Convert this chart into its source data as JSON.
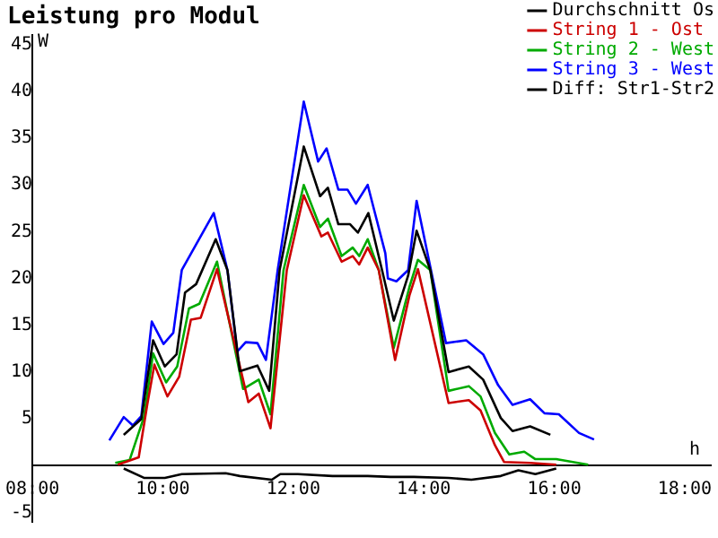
{
  "chart_data": {
    "type": "line",
    "title": "Leistung pro Modul",
    "xlabel": "h",
    "ylabel": "W",
    "xlim": [
      8,
      18.4
    ],
    "ylim": [
      -6,
      46
    ],
    "xticks": [
      {
        "value": 8,
        "label": "08:00"
      },
      {
        "value": 10,
        "label": "10:00"
      },
      {
        "value": 12,
        "label": "12:00"
      },
      {
        "value": 14,
        "label": "14:00"
      },
      {
        "value": 16,
        "label": "16:00"
      },
      {
        "value": 18,
        "label": "18:00"
      }
    ],
    "yticks": [
      -5,
      5,
      10,
      15,
      20,
      25,
      30,
      35,
      40,
      45
    ],
    "grid": false,
    "legend": "top right",
    "marker": "none",
    "line_style": "solid",
    "series": [
      {
        "name": "Durchschnitt Os",
        "color": "#000000",
        "x": [
          9.4,
          9.67,
          9.85,
          10.03,
          10.21,
          10.34,
          10.51,
          10.81,
          10.99,
          11.18,
          11.45,
          11.63,
          11.79,
          12.16,
          12.41,
          12.53,
          12.69,
          12.87,
          12.99,
          13.15,
          13.36,
          13.54,
          13.76,
          13.89,
          14.1,
          14.38,
          14.69,
          14.91,
          15.18,
          15.36,
          15.63,
          15.94
        ],
        "values": [
          3.3,
          5.0,
          13.4,
          10.6,
          11.9,
          18.5,
          19.4,
          24.2,
          20.9,
          10.1,
          10.7,
          8.0,
          20.9,
          34.1,
          28.8,
          29.7,
          25.8,
          25.8,
          24.9,
          27.0,
          20.9,
          15.5,
          20.3,
          25.1,
          20.9,
          10.0,
          10.6,
          9.2,
          5.1,
          3.7,
          4.2,
          3.3
        ]
      },
      {
        "name": "String 1 - Ost",
        "color": "#cc0000",
        "x": [
          9.31,
          9.63,
          9.76,
          9.87,
          10.07,
          10.25,
          10.43,
          10.58,
          10.83,
          11.31,
          11.47,
          11.65,
          11.9,
          12.16,
          12.43,
          12.53,
          12.74,
          12.91,
          13.01,
          13.14,
          13.31,
          13.56,
          13.78,
          13.91,
          14.38,
          14.69,
          14.87,
          15.09,
          15.23,
          15.63,
          16.03
        ],
        "values": [
          0.1,
          0.9,
          6.5,
          10.8,
          7.4,
          9.5,
          15.6,
          15.8,
          21.0,
          6.8,
          7.7,
          4.0,
          20.9,
          28.9,
          24.5,
          24.9,
          21.8,
          22.4,
          21.5,
          23.3,
          20.9,
          11.3,
          18.2,
          21.0,
          6.7,
          7.0,
          5.9,
          2.2,
          0.4,
          0.3,
          0.1
        ]
      },
      {
        "name": "String 2 - West",
        "color": "#00aa00",
        "x": [
          9.27,
          9.49,
          9.71,
          9.85,
          10.05,
          10.22,
          10.4,
          10.56,
          10.83,
          11.23,
          11.47,
          11.65,
          11.85,
          12.16,
          12.41,
          12.53,
          12.74,
          12.91,
          13.01,
          13.14,
          13.31,
          13.54,
          13.78,
          13.91,
          14.1,
          14.38,
          14.69,
          14.87,
          15.09,
          15.31,
          15.54,
          15.71,
          16.03,
          16.52
        ],
        "values": [
          0.3,
          0.6,
          5.2,
          12.0,
          8.9,
          10.6,
          16.8,
          17.3,
          21.8,
          8.2,
          9.2,
          5.5,
          20.9,
          30.0,
          25.5,
          26.4,
          22.4,
          23.3,
          22.4,
          24.2,
          20.9,
          12.6,
          19.1,
          22.0,
          20.9,
          8.0,
          8.5,
          7.4,
          3.5,
          1.2,
          1.5,
          0.7,
          0.7,
          0.1
        ]
      },
      {
        "name": "String 3 - West",
        "color": "#0000ff",
        "x": [
          9.18,
          9.4,
          9.54,
          9.67,
          9.83,
          10.01,
          10.16,
          10.29,
          10.78,
          10.99,
          11.14,
          11.27,
          11.45,
          11.58,
          11.76,
          12.16,
          12.38,
          12.51,
          12.69,
          12.83,
          12.96,
          13.14,
          13.41,
          13.45,
          13.58,
          13.76,
          13.89,
          14.11,
          14.34,
          14.65,
          14.91,
          15.14,
          15.36,
          15.63,
          15.85,
          16.07,
          16.38,
          16.61
        ],
        "values": [
          2.7,
          5.2,
          4.3,
          5.3,
          15.4,
          13.0,
          14.2,
          20.9,
          27.0,
          20.9,
          12.2,
          13.2,
          13.1,
          11.3,
          20.9,
          38.9,
          32.5,
          33.9,
          29.5,
          29.5,
          28.0,
          30.0,
          22.7,
          20.0,
          19.7,
          20.9,
          28.3,
          20.9,
          13.1,
          13.4,
          11.9,
          8.6,
          6.5,
          7.1,
          5.6,
          5.5,
          3.5,
          2.8
        ]
      },
      {
        "name": "Diff: Str1-Str2",
        "color": "#000000",
        "x": [
          9.4,
          9.71,
          10.03,
          10.29,
          10.96,
          11.18,
          11.67,
          11.8,
          12.07,
          12.6,
          13.14,
          13.49,
          13.85,
          14.38,
          14.73,
          15.18,
          15.45,
          15.71,
          16.03
        ],
        "values": [
          -0.3,
          -1.3,
          -1.3,
          -0.9,
          -0.8,
          -1.1,
          -1.5,
          -0.9,
          -0.9,
          -1.1,
          -1.1,
          -1.2,
          -1.2,
          -1.3,
          -1.5,
          -1.1,
          -0.5,
          -0.9,
          -0.3
        ]
      }
    ]
  }
}
